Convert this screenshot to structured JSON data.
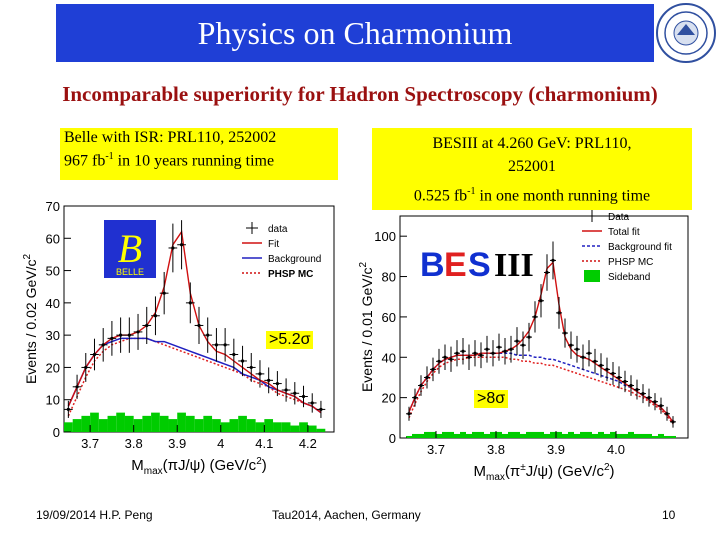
{
  "header": {
    "title": "Physics on Charmonium"
  },
  "subtitle": "Incomparable superiority for Hadron Spectroscopy (charmonium)",
  "belle_box": {
    "line1": "Belle with ISR: PRL110, 252002",
    "line2_pre": "967 fb",
    "line2_sup": "-1",
    "line2_post": " in 10 years running time"
  },
  "bes_box": {
    "line1": "BESIII at 4.260 GeV: PRL110,",
    "line2": "252001",
    "line3_pre": "0.525 fb",
    "line3_sup": "-1",
    "line3_post": " in one month running time"
  },
  "colors": {
    "title_bg": "#1f3fd6",
    "subtitle": "#9a1010",
    "highlight": "#ffff00",
    "sideband": "#00cc00"
  },
  "chart_data": [
    {
      "type": "line",
      "experiment": "Belle",
      "logo_text": "BELLE",
      "ylabel": "Events / 0.02 GeV/c",
      "ylabel_sup": "2",
      "xlabel": "M",
      "xlabel_sub": "max",
      "xlabel_post": "(πJ/ψ) (GeV/c",
      "xlabel_sup": "2",
      "xlabel_end": ")",
      "xlim": [
        3.64,
        4.26
      ],
      "ylim": [
        0,
        70
      ],
      "xticks": [
        3.7,
        3.8,
        3.9,
        4.0,
        4.1,
        4.2
      ],
      "xtick_labels": [
        "3.7",
        "3.8",
        "3.9",
        "4",
        "4.1",
        "4.2"
      ],
      "yticks": [
        0,
        10,
        20,
        30,
        40,
        50,
        60,
        70
      ],
      "legend": [
        "data",
        "Fit",
        "Background",
        "PHSP MC"
      ],
      "annotation": ">5.2σ",
      "data_x": [
        3.65,
        3.67,
        3.69,
        3.71,
        3.73,
        3.75,
        3.77,
        3.79,
        3.81,
        3.83,
        3.85,
        3.87,
        3.89,
        3.91,
        3.93,
        3.95,
        3.97,
        3.99,
        4.01,
        4.03,
        4.05,
        4.07,
        4.09,
        4.11,
        4.13,
        4.15,
        4.17,
        4.19,
        4.21,
        4.23
      ],
      "data_y": [
        7,
        14,
        20,
        24,
        27,
        29,
        30,
        30,
        31,
        33,
        36,
        43,
        57,
        58,
        40,
        33,
        30,
        27,
        27,
        24,
        22,
        20,
        18,
        16,
        15,
        13,
        12,
        11,
        9,
        7
      ],
      "fit_y": [
        8,
        14,
        20,
        24,
        27,
        29,
        30,
        30,
        31,
        33,
        37,
        45,
        58,
        62,
        43,
        33,
        28,
        25,
        24,
        22,
        20,
        18,
        16,
        15,
        13,
        12,
        11,
        9,
        8,
        6
      ],
      "background_y": [
        8,
        14,
        20,
        24,
        27,
        28,
        29,
        29,
        29,
        29,
        28,
        28,
        27,
        26,
        25,
        24,
        23,
        22,
        21,
        20,
        18,
        17,
        16,
        14,
        13,
        12,
        11,
        9,
        8,
        6
      ],
      "phsp_y": [
        5,
        11,
        17,
        22,
        25,
        27,
        28,
        29,
        29,
        29,
        28,
        27,
        26,
        25,
        24,
        23,
        22,
        21,
        20,
        19,
        18,
        16,
        15,
        14,
        12,
        11,
        10,
        9,
        8,
        6
      ],
      "sideband_y": [
        3,
        4,
        5,
        6,
        4,
        5,
        6,
        5,
        4,
        5,
        6,
        5,
        4,
        6,
        5,
        4,
        5,
        4,
        3,
        4,
        5,
        4,
        3,
        4,
        3,
        3,
        2,
        3,
        2,
        1
      ]
    },
    {
      "type": "line",
      "experiment": "BESIII",
      "logo_text": "BESIII",
      "ylabel": "Events / 0.01 GeV/c",
      "ylabel_sup": "2",
      "xlabel": "M",
      "xlabel_sub": "max",
      "xlabel_post": "(π",
      "xlabel_pm": "±",
      "xlabel_post2": "J/ψ) (GeV/c",
      "xlabel_sup": "2",
      "xlabel_end": ")",
      "xlim": [
        3.64,
        4.12
      ],
      "ylim": [
        0,
        110
      ],
      "xticks": [
        3.7,
        3.8,
        3.9,
        4.0
      ],
      "xtick_labels": [
        "3.7",
        "3.8",
        "3.9",
        "4.0"
      ],
      "yticks": [
        0,
        20,
        40,
        60,
        80,
        100
      ],
      "legend": [
        "Data",
        "Total fit",
        "Background fit",
        "PHSP MC",
        "Sideband"
      ],
      "annotation": ">8σ",
      "data_x": [
        3.655,
        3.665,
        3.675,
        3.685,
        3.695,
        3.705,
        3.715,
        3.725,
        3.735,
        3.745,
        3.755,
        3.765,
        3.775,
        3.785,
        3.795,
        3.805,
        3.815,
        3.825,
        3.835,
        3.845,
        3.855,
        3.865,
        3.875,
        3.885,
        3.895,
        3.905,
        3.915,
        3.925,
        3.935,
        3.945,
        3.955,
        3.965,
        3.975,
        3.985,
        3.995,
        4.005,
        4.015,
        4.025,
        4.035,
        4.045,
        4.055,
        4.065,
        4.075,
        4.085,
        4.095
      ],
      "data_y": [
        12,
        20,
        26,
        30,
        34,
        38,
        40,
        39,
        42,
        43,
        40,
        42,
        41,
        44,
        42,
        45,
        43,
        44,
        48,
        46,
        50,
        60,
        68,
        82,
        88,
        62,
        52,
        46,
        44,
        40,
        42,
        38,
        36,
        34,
        32,
        30,
        28,
        26,
        24,
        22,
        20,
        18,
        16,
        12,
        8
      ],
      "fit_y": [
        13,
        20,
        26,
        30,
        34,
        37,
        39,
        40,
        41,
        41,
        41,
        41,
        42,
        42,
        42,
        42,
        43,
        44,
        46,
        49,
        53,
        60,
        71,
        84,
        87,
        66,
        50,
        44,
        41,
        40,
        39,
        37,
        35,
        33,
        31,
        29,
        27,
        25,
        23,
        21,
        19,
        17,
        15,
        12,
        8
      ],
      "background_y": [
        13,
        20,
        26,
        30,
        34,
        37,
        39,
        40,
        41,
        41,
        41,
        41,
        42,
        42,
        42,
        42,
        42,
        42,
        41,
        41,
        41,
        40,
        40,
        39,
        39,
        38,
        37,
        36,
        35,
        34,
        33,
        32,
        31,
        30,
        29,
        28,
        26,
        25,
        23,
        21,
        19,
        17,
        15,
        12,
        8
      ],
      "phsp_y": [
        10,
        17,
        23,
        28,
        32,
        35,
        37,
        38,
        39,
        39,
        40,
        40,
        40,
        40,
        40,
        40,
        40,
        39,
        39,
        38,
        38,
        37,
        37,
        36,
        36,
        35,
        34,
        33,
        32,
        31,
        30,
        29,
        28,
        27,
        26,
        25,
        24,
        23,
        21,
        20,
        18,
        16,
        14,
        11,
        7
      ],
      "sideband_y": [
        1,
        2,
        2,
        3,
        3,
        2,
        3,
        3,
        2,
        3,
        2,
        3,
        3,
        2,
        3,
        3,
        2,
        3,
        3,
        2,
        3,
        3,
        3,
        2,
        3,
        3,
        2,
        3,
        2,
        3,
        3,
        2,
        3,
        2,
        3,
        2,
        2,
        3,
        2,
        2,
        2,
        1,
        2,
        1,
        1
      ]
    }
  ],
  "footer": {
    "date_author": "19/09/2014 H.P. Peng",
    "venue": "Tau2014, Aachen, Germany",
    "page": "10"
  }
}
